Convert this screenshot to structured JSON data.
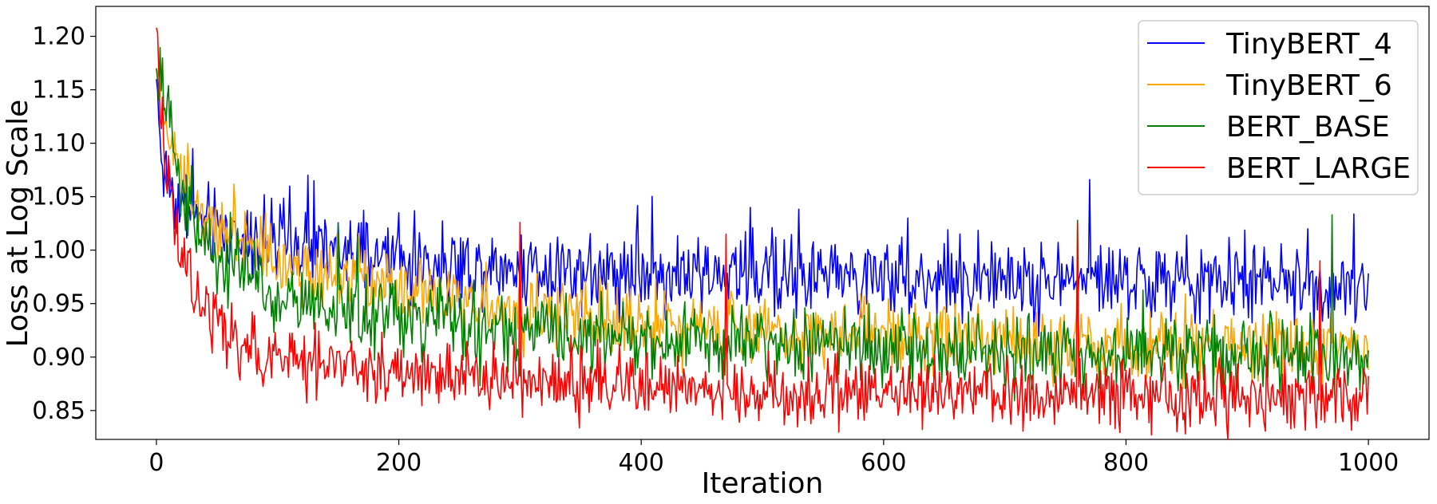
{
  "chart_data": {
    "type": "line",
    "xlabel": "Iteration",
    "ylabel": "Loss at Log Scale",
    "xlim": [
      -50,
      1050
    ],
    "ylim": [
      0.823,
      1.228
    ],
    "xticks": [
      0,
      200,
      400,
      600,
      800,
      1000
    ],
    "xtick_labels": [
      "0",
      "200",
      "400",
      "600",
      "800",
      "1000"
    ],
    "yticks": [
      0.85,
      0.9,
      0.95,
      1.0,
      1.05,
      1.1,
      1.15,
      1.2
    ],
    "ytick_labels": [
      "0.85",
      "0.90",
      "0.95",
      "1.00",
      "1.05",
      "1.10",
      "1.15",
      "1.20"
    ],
    "grid": false,
    "legend_position": "top-right",
    "x": [
      0,
      5,
      10,
      20,
      30,
      40,
      50,
      60,
      80,
      100,
      130,
      160,
      200,
      250,
      300,
      350,
      400,
      450,
      500,
      550,
      600,
      650,
      700,
      750,
      800,
      850,
      900,
      950,
      1000
    ],
    "series": [
      {
        "name": "TinyBERT_4",
        "color": "#0000ff",
        "values": [
          1.16,
          1.075,
          1.065,
          1.04,
          1.03,
          1.025,
          1.02,
          1.015,
          1.01,
          1.005,
          1.0,
          0.995,
          0.99,
          0.985,
          0.985,
          0.982,
          0.98,
          0.978,
          0.977,
          0.976,
          0.975,
          0.974,
          0.973,
          0.972,
          0.971,
          0.97,
          0.969,
          0.968,
          0.967
        ],
        "noise": 0.018,
        "spikes": [
          [
            30,
            1.095
          ],
          [
            110,
            1.06
          ],
          [
            130,
            1.065
          ],
          [
            200,
            1.035
          ],
          [
            490,
            1.04
          ],
          [
            620,
            1.03
          ],
          [
            770,
            1.066
          ],
          [
            950,
            1.02
          ]
        ]
      },
      {
        "name": "TinyBERT_6",
        "color": "#ffa500",
        "values": [
          1.17,
          1.14,
          1.11,
          1.075,
          1.055,
          1.04,
          1.03,
          1.02,
          1.005,
          0.99,
          0.98,
          0.97,
          0.96,
          0.95,
          0.943,
          0.938,
          0.933,
          0.929,
          0.925,
          0.922,
          0.92,
          0.918,
          0.916,
          0.914,
          0.912,
          0.911,
          0.91,
          0.909,
          0.908
        ],
        "noise": 0.016,
        "spikes": [
          [
            25,
            1.065
          ],
          [
            90,
            1.035
          ],
          [
            760,
            0.985
          ]
        ]
      },
      {
        "name": "BERT_BASE",
        "color": "#008000",
        "values": [
          1.17,
          1.155,
          1.12,
          1.06,
          1.03,
          1.01,
          0.995,
          0.985,
          0.97,
          0.96,
          0.95,
          0.943,
          0.937,
          0.93,
          0.925,
          0.921,
          0.918,
          0.915,
          0.913,
          0.911,
          0.909,
          0.907,
          0.905,
          0.904,
          0.903,
          0.902,
          0.901,
          0.9,
          0.899
        ],
        "noise": 0.017,
        "spikes": [
          [
            25,
            1.07
          ],
          [
            150,
            1.025
          ],
          [
            760,
            1.028
          ],
          [
            970,
            1.033
          ]
        ]
      },
      {
        "name": "BERT_LARGE",
        "color": "#ff0000",
        "values": [
          1.208,
          1.1,
          1.06,
          1.0,
          0.965,
          0.945,
          0.93,
          0.92,
          0.908,
          0.9,
          0.895,
          0.89,
          0.885,
          0.88,
          0.876,
          0.873,
          0.871,
          0.869,
          0.868,
          0.867,
          0.866,
          0.865,
          0.864,
          0.864,
          0.863,
          0.863,
          0.862,
          0.862,
          0.862
        ],
        "noise": 0.015,
        "spikes": [
          [
            300,
            1.026
          ],
          [
            470,
            1.015
          ],
          [
            760,
            1.025
          ],
          [
            960,
            0.99
          ]
        ]
      }
    ]
  }
}
